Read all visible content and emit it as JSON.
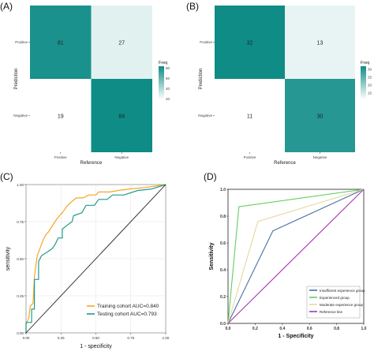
{
  "chart_data": [
    {
      "panel": "(A)",
      "type": "heatmap",
      "xlabel": "Reference",
      "ylabel": "Prediction",
      "x_categories": [
        "Positive",
        "Negative"
      ],
      "y_categories": [
        "Positive",
        "Negative"
      ],
      "cells": [
        {
          "reference": "Positive",
          "prediction": "Positive",
          "value": 81
        },
        {
          "reference": "Negative",
          "prediction": "Positive",
          "value": 27
        },
        {
          "reference": "Positive",
          "prediction": "Negative",
          "value": 19
        },
        {
          "reference": "Negative",
          "prediction": "Negative",
          "value": 84
        }
      ],
      "legend": {
        "title": "Freq",
        "ticks": [
          80,
          60,
          40,
          20
        ],
        "range": [
          19,
          84
        ],
        "position": "right"
      },
      "colors": {
        "low": "#ffffff",
        "high": "#0f8c86"
      }
    },
    {
      "panel": "(B)",
      "type": "heatmap",
      "xlabel": "Reference",
      "ylabel": "Prediction",
      "x_categories": [
        "Positive",
        "Negative"
      ],
      "y_categories": [
        "Positive",
        "Negative"
      ],
      "cells": [
        {
          "reference": "Positive",
          "prediction": "Positive",
          "value": 32
        },
        {
          "reference": "Negative",
          "prediction": "Positive",
          "value": 13
        },
        {
          "reference": "Positive",
          "prediction": "Negative",
          "value": 11
        },
        {
          "reference": "Negative",
          "prediction": "Negative",
          "value": 30
        }
      ],
      "legend": {
        "title": "Freq",
        "ticks": [
          30,
          25,
          20,
          15
        ],
        "range": [
          11,
          32
        ],
        "position": "right"
      },
      "colors": {
        "low": "#ffffff",
        "high": "#0f8c86"
      }
    },
    {
      "panel": "(C)",
      "type": "line",
      "xlabel": "1 - specificity",
      "ylabel": "sensitivity",
      "xlim": [
        0,
        1
      ],
      "ylim": [
        0,
        1
      ],
      "x_ticks": [
        "0.00",
        "0.25",
        "0.50",
        "0.75",
        "1.00"
      ],
      "y_ticks": [
        "0.00",
        "0.25",
        "0.50",
        "0.75",
        "1.00"
      ],
      "legend_position": "bottom-right",
      "series": [
        {
          "name": "Training cohort AUC=0.840",
          "color": "#f5a623",
          "points": [
            [
              0,
              0
            ],
            [
              0,
              0.06
            ],
            [
              0.02,
              0.1
            ],
            [
              0.03,
              0.18
            ],
            [
              0.05,
              0.2
            ],
            [
              0.06,
              0.38
            ],
            [
              0.08,
              0.52
            ],
            [
              0.1,
              0.57
            ],
            [
              0.12,
              0.62
            ],
            [
              0.14,
              0.66
            ],
            [
              0.16,
              0.68
            ],
            [
              0.18,
              0.71
            ],
            [
              0.2,
              0.74
            ],
            [
              0.23,
              0.78
            ],
            [
              0.26,
              0.81
            ],
            [
              0.29,
              0.85
            ],
            [
              0.32,
              0.88
            ],
            [
              0.36,
              0.91
            ],
            [
              0.41,
              0.91
            ],
            [
              0.45,
              0.93
            ],
            [
              0.5,
              0.93
            ],
            [
              0.52,
              0.95
            ],
            [
              0.6,
              0.95
            ],
            [
              0.66,
              0.96
            ],
            [
              0.74,
              0.97
            ],
            [
              0.85,
              0.98
            ],
            [
              1,
              1
            ]
          ]
        },
        {
          "name": "Testing cohort AUC=0.793",
          "color": "#1f9b8c",
          "points": [
            [
              0,
              0
            ],
            [
              0,
              0.07
            ],
            [
              0.04,
              0.07
            ],
            [
              0.04,
              0.16
            ],
            [
              0.06,
              0.16
            ],
            [
              0.06,
              0.36
            ],
            [
              0.09,
              0.36
            ],
            [
              0.09,
              0.48
            ],
            [
              0.11,
              0.52
            ],
            [
              0.16,
              0.55
            ],
            [
              0.19,
              0.57
            ],
            [
              0.21,
              0.6
            ],
            [
              0.23,
              0.64
            ],
            [
              0.26,
              0.64
            ],
            [
              0.26,
              0.7
            ],
            [
              0.3,
              0.73
            ],
            [
              0.33,
              0.75
            ],
            [
              0.34,
              0.79
            ],
            [
              0.4,
              0.81
            ],
            [
              0.43,
              0.86
            ],
            [
              0.49,
              0.86
            ],
            [
              0.52,
              0.9
            ],
            [
              0.58,
              0.9
            ],
            [
              0.62,
              0.93
            ],
            [
              0.7,
              0.93
            ],
            [
              0.8,
              0.96
            ],
            [
              0.9,
              0.97
            ],
            [
              1,
              1
            ]
          ]
        },
        {
          "name": "",
          "color": "#222222",
          "points": [
            [
              0,
              0
            ],
            [
              1,
              1
            ]
          ]
        }
      ]
    },
    {
      "panel": "(D)",
      "type": "line",
      "xlabel": "1 - Specificity",
      "ylabel": "Sensitivity",
      "xlim": [
        0,
        1
      ],
      "ylim": [
        0,
        1
      ],
      "x_ticks": [
        "0.0",
        "0.2",
        "0.4",
        "0.6",
        "0.8",
        "1.0"
      ],
      "y_ticks": [
        "0.0",
        "0.2",
        "0.4",
        "0.6",
        "0.8",
        "1.0"
      ],
      "legend_position": "bottom-right",
      "series": [
        {
          "name": "Insufficient experience group",
          "color": "#4a6fa5",
          "points": [
            [
              0,
              0
            ],
            [
              0.33,
              0.69
            ],
            [
              1,
              1
            ]
          ]
        },
        {
          "name": "Experienced group",
          "color": "#5fcf5f",
          "points": [
            [
              0,
              0
            ],
            [
              0.08,
              0.87
            ],
            [
              1,
              1
            ]
          ]
        },
        {
          "name": "Moderate experience group",
          "color": "#e6d8a0",
          "points": [
            [
              0,
              0
            ],
            [
              0.22,
              0.76
            ],
            [
              1,
              1
            ]
          ]
        },
        {
          "name": "Reference line",
          "color": "#a23bb0",
          "points": [
            [
              0,
              0
            ],
            [
              1,
              1
            ]
          ]
        }
      ]
    }
  ]
}
